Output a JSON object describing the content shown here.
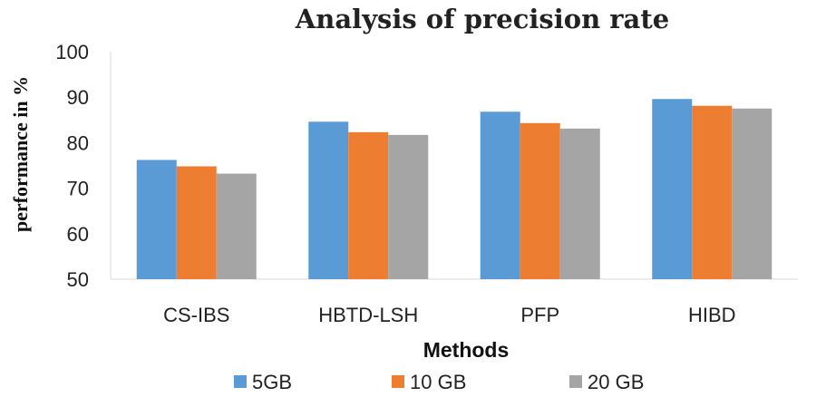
{
  "chart_data": {
    "type": "bar",
    "title": "Analysis of precision rate",
    "xlabel": "Methods",
    "ylabel": "performance  in %",
    "ylim": [
      50,
      100
    ],
    "yticks": [
      50,
      60,
      70,
      80,
      90,
      100
    ],
    "grid": false,
    "legend_position": "bottom",
    "categories": [
      "CS-IBS",
      "HBTD-LSH",
      "PFP",
      "HIBD"
    ],
    "series": [
      {
        "name": "5GB",
        "color": "#5B9BD5",
        "values": [
          76.2,
          84.6,
          86.8,
          89.6
        ]
      },
      {
        "name": "10 GB",
        "color": "#ED7D31",
        "values": [
          74.8,
          82.3,
          84.3,
          88.1
        ]
      },
      {
        "name": "20 GB",
        "color": "#A5A5A5",
        "values": [
          73.2,
          81.7,
          83.1,
          87.5
        ]
      }
    ]
  }
}
